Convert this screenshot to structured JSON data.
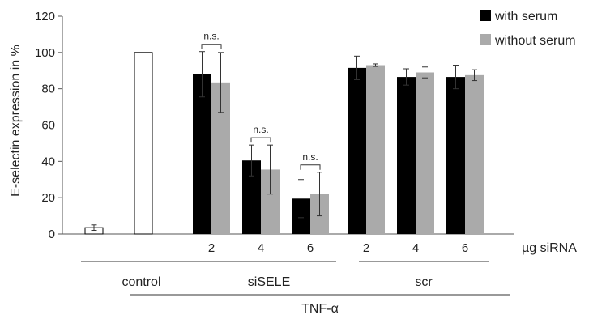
{
  "chart_data": {
    "type": "bar",
    "ylabel": "E-selectin expression in %",
    "ylim": [
      0,
      120
    ],
    "yticks": [
      0,
      20,
      40,
      60,
      80,
      100,
      120
    ],
    "grid": false,
    "legend": {
      "placement": "top-right",
      "entries": [
        {
          "name": "with serum",
          "color": "#000000"
        },
        {
          "name": "without serum",
          "color": "#aaaaaa"
        }
      ]
    },
    "x_unit_label": "µg siRNA",
    "control_bars": [
      {
        "value": 3.5,
        "error": 1.5,
        "fill": "#ffffff"
      },
      {
        "value": 100,
        "error": 0,
        "fill": "#ffffff"
      }
    ],
    "categories": [
      "2",
      "4",
      "6",
      "2",
      "4",
      "6"
    ],
    "series": [
      {
        "name": "with serum",
        "color": "#000000",
        "values": [
          88,
          40.5,
          19.5,
          91.5,
          86.5,
          86.5
        ],
        "errors": [
          12.5,
          8.5,
          10.5,
          6.5,
          4.5,
          6.5
        ]
      },
      {
        "name": "without serum",
        "color": "#aaaaaa",
        "values": [
          83.5,
          35.5,
          22,
          93,
          89,
          87.5
        ],
        "errors": [
          16.5,
          13.5,
          12,
          0.7,
          3,
          3
        ]
      }
    ],
    "significance": [
      {
        "group": 0,
        "text": "n.s."
      },
      {
        "group": 1,
        "text": "n.s."
      },
      {
        "group": 2,
        "text": "n.s."
      }
    ],
    "groups": [
      {
        "label": "control"
      },
      {
        "label": "siSELE"
      },
      {
        "label": "scr"
      }
    ],
    "treatment_label": "TNF-α"
  }
}
